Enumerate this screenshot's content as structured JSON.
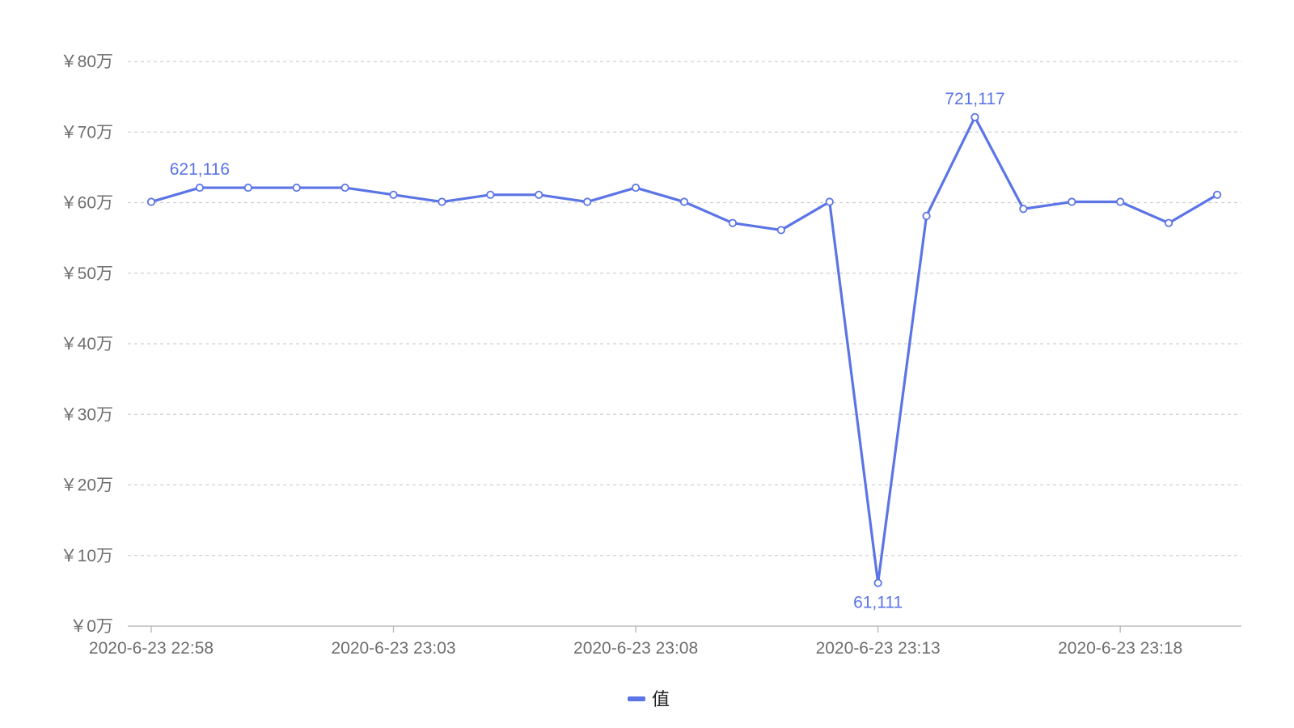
{
  "chart_data": {
    "type": "line",
    "title": "",
    "xlabel": "",
    "ylabel": "",
    "x": [
      "2020-6-23 22:58",
      "2020-6-23 22:59",
      "2020-6-23 23:00",
      "2020-6-23 23:01",
      "2020-6-23 23:02",
      "2020-6-23 23:03",
      "2020-6-23 23:04",
      "2020-6-23 23:05",
      "2020-6-23 23:06",
      "2020-6-23 23:07",
      "2020-6-23 23:08",
      "2020-6-23 23:09",
      "2020-6-23 23:10",
      "2020-6-23 23:11",
      "2020-6-23 23:12",
      "2020-6-23 23:13",
      "2020-6-23 23:14",
      "2020-6-23 23:15",
      "2020-6-23 23:16",
      "2020-6-23 23:17",
      "2020-6-23 23:18",
      "2020-6-23 23:19",
      "2020-6-23 23:20"
    ],
    "x_tick_labels": [
      "2020-6-23 22:58",
      "2020-6-23 23:03",
      "2020-6-23 23:08",
      "2020-6-23 23:13",
      "2020-6-23 23:18"
    ],
    "series": [
      {
        "name": "值",
        "color": "#5b74e6",
        "values": [
          601111,
          621116,
          621116,
          621116,
          621116,
          611111,
          601111,
          611111,
          611111,
          601111,
          621111,
          601111,
          571111,
          561111,
          601111,
          61111,
          581111,
          721117,
          591111,
          601111,
          601111,
          571111,
          611111
        ]
      }
    ],
    "data_labels": [
      {
        "index": 1,
        "text": "621,116",
        "position": "above"
      },
      {
        "index": 15,
        "text": "61,111",
        "position": "below"
      },
      {
        "index": 17,
        "text": "721,117",
        "position": "above"
      }
    ],
    "y_ticks": [
      {
        "value": 0,
        "label": "￥0万"
      },
      {
        "value": 100000,
        "label": "￥10万"
      },
      {
        "value": 200000,
        "label": "￥20万"
      },
      {
        "value": 300000,
        "label": "￥30万"
      },
      {
        "value": 400000,
        "label": "￥40万"
      },
      {
        "value": 500000,
        "label": "￥50万"
      },
      {
        "value": 600000,
        "label": "￥60万"
      },
      {
        "value": 700000,
        "label": "￥70万"
      },
      {
        "value": 800000,
        "label": "￥80万"
      }
    ],
    "ylim": [
      0,
      800000
    ],
    "grid": true,
    "legend": {
      "position": "bottom-center",
      "label": "值"
    }
  }
}
